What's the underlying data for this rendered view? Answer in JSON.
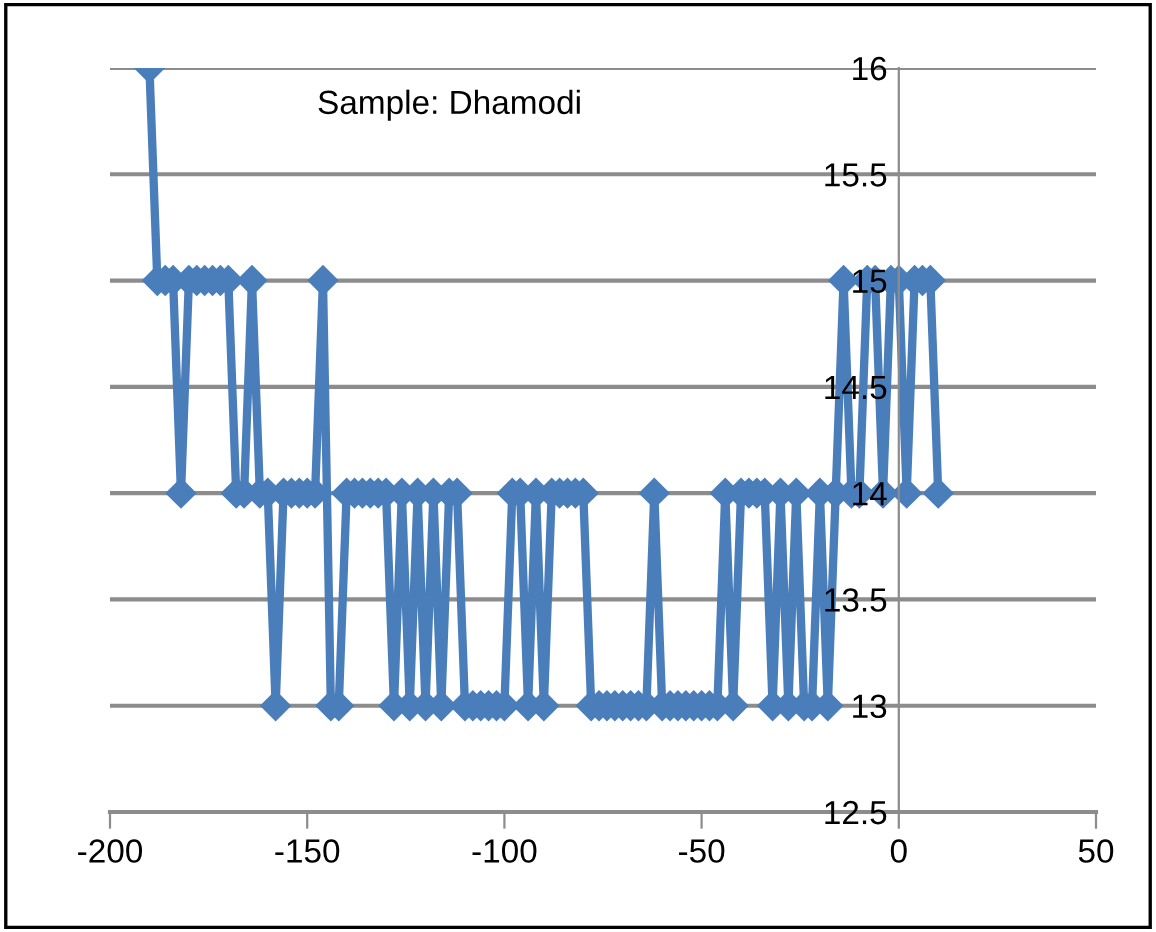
{
  "chart_data": {
    "type": "line",
    "marker": "diamond",
    "line_style": "solid",
    "grid": "y",
    "annotations": [
      "Sample: Dhamodi"
    ],
    "xlim": [
      -200,
      50
    ],
    "xticks": [
      -200,
      -150,
      -100,
      -50,
      0,
      50
    ],
    "ylim": [
      12.5,
      16
    ],
    "yticks": [
      12.5,
      13,
      13.5,
      14,
      14.5,
      15,
      15.5,
      16
    ],
    "series": [
      {
        "color": "#4a7ebb",
        "x": [
          -190,
          -188,
          -186,
          -184,
          -182,
          -180,
          -178,
          -176,
          -174,
          -172,
          -170,
          -168,
          -166,
          -164,
          -162,
          -160,
          -158,
          -156,
          -154,
          -152,
          -150,
          -148,
          -146,
          -144,
          -142,
          -140,
          -138,
          -136,
          -134,
          -132,
          -130,
          -128,
          -126,
          -124,
          -122,
          -120,
          -118,
          -116,
          -114,
          -112,
          -110,
          -108,
          -106,
          -104,
          -102,
          -100,
          -98,
          -96,
          -94,
          -92,
          -90,
          -88,
          -86,
          -84,
          -82,
          -80,
          -78,
          -76,
          -74,
          -72,
          -70,
          -68,
          -66,
          -64,
          -62,
          -60,
          -58,
          -56,
          -54,
          -52,
          -50,
          -48,
          -46,
          -44,
          -42,
          -40,
          -38,
          -36,
          -34,
          -32,
          -30,
          -28,
          -26,
          -24,
          -22,
          -20,
          -18,
          -16,
          -14,
          -12,
          -10,
          -8,
          -6,
          -4,
          -2,
          0,
          2,
          4,
          6,
          8,
          10
        ],
        "values": [
          16,
          15,
          15,
          15,
          14,
          15,
          15,
          15,
          15,
          15,
          15,
          14,
          14,
          15,
          14,
          14,
          13,
          14,
          14,
          14,
          14,
          14,
          15,
          13,
          13,
          14,
          14,
          14,
          14,
          14,
          14,
          13,
          14,
          13,
          14,
          13,
          14,
          13,
          14,
          14,
          13,
          13,
          13,
          13,
          13,
          13,
          14,
          14,
          13,
          14,
          13,
          14,
          14,
          14,
          14,
          14,
          13,
          13,
          13,
          13,
          13,
          13,
          13,
          13,
          14,
          13,
          13,
          13,
          13,
          13,
          13,
          13,
          13,
          14,
          13,
          14,
          14,
          14,
          14,
          13,
          14,
          13,
          14,
          13,
          13,
          14,
          13,
          14,
          15,
          14,
          14,
          15,
          15,
          14,
          15,
          15,
          14,
          15,
          15,
          15,
          14
        ]
      }
    ]
  }
}
